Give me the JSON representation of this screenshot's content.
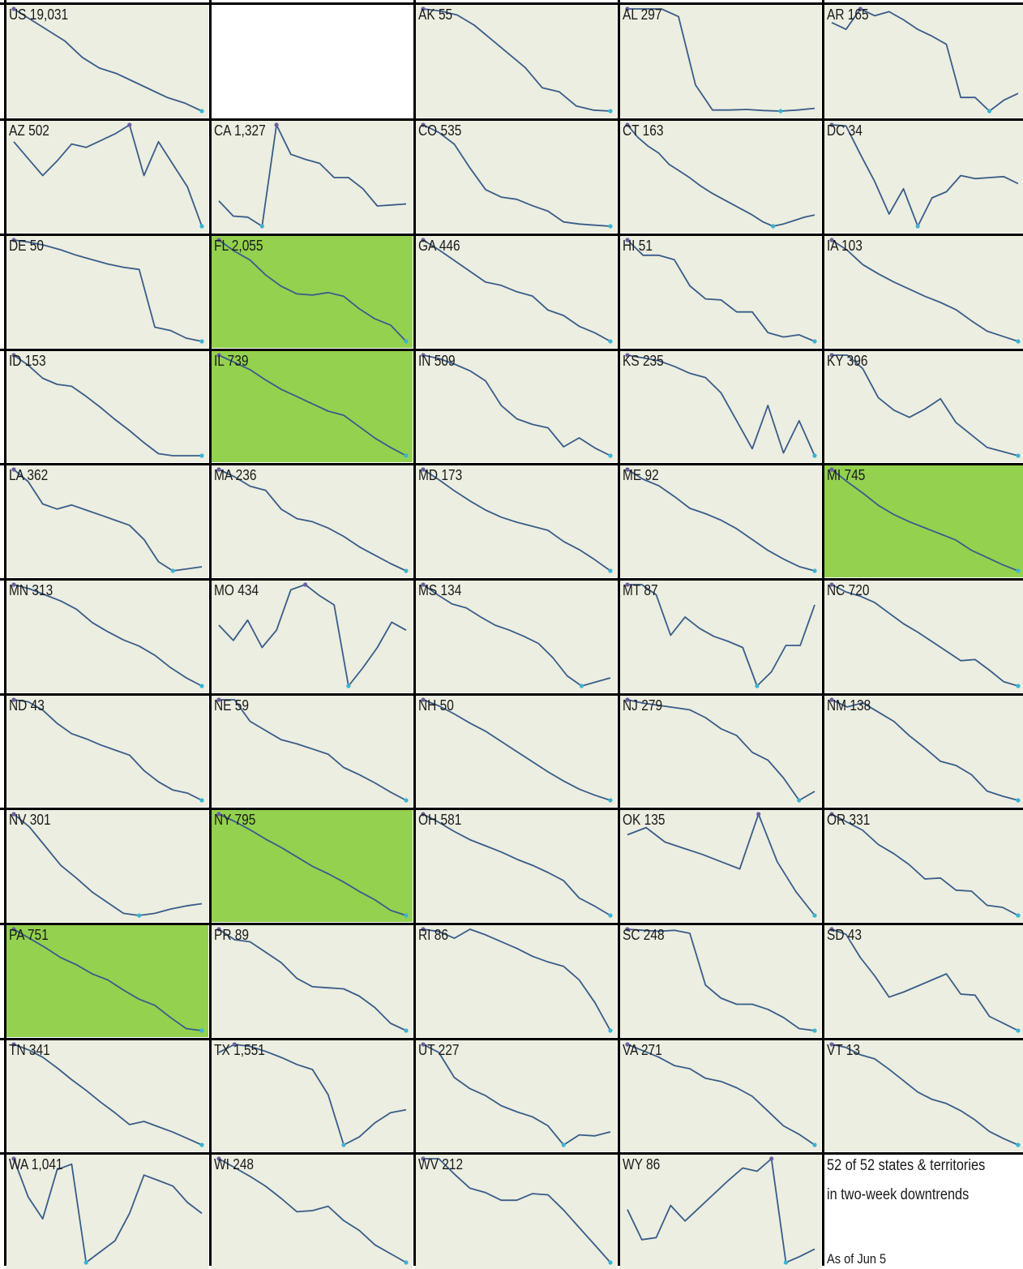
{
  "colors": {
    "panel_bg": "#ebeee0",
    "highlight_bg": "#93d14f",
    "line": "#3a5c8a",
    "peak_marker": "#6b5fa0",
    "trough_marker": "#39b4d4",
    "grid_line": "#000000"
  },
  "note": {
    "line1": "52 of 52 states & territories",
    "line2": "in two-week downtrends",
    "as_of": "As of Jun 5"
  },
  "chart_data": {
    "type": "line",
    "layout": "small-multiples",
    "panels": [
      {
        "label": "US 19,031",
        "highlight": false,
        "values": [
          100,
          96,
          92,
          88,
          82,
          78,
          76,
          73,
          70,
          67,
          65,
          62
        ]
      },
      {
        "label": "",
        "blank": true
      },
      {
        "label": "AK 55",
        "highlight": false,
        "values": [
          100,
          99,
          97,
          92,
          85,
          78,
          71,
          61,
          59,
          52,
          50,
          49.5
        ]
      },
      {
        "label": "AL 297",
        "highlight": false,
        "values": [
          100,
          100,
          100,
          93,
          30,
          7,
          7,
          7.5,
          6.5,
          6,
          7,
          8.5
        ]
      },
      {
        "label": "AR 165",
        "highlight": false,
        "values": [
          90,
          85,
          100,
          95,
          98,
          92,
          85,
          80,
          74,
          35,
          35,
          25,
          33,
          38
        ]
      },
      {
        "label": "AZ 502",
        "highlight": false,
        "values": [
          75,
          60,
          45,
          58,
          73,
          70,
          76,
          82,
          90,
          45,
          75,
          55,
          35,
          0
        ]
      },
      {
        "label": "CA 1,327",
        "highlight": false,
        "values": [
          25,
          10,
          9,
          0,
          100,
          71,
          66,
          62,
          48,
          48,
          37,
          20,
          21,
          22
        ]
      },
      {
        "label": "CO 535",
        "highlight": false,
        "values": [
          100,
          93,
          82,
          60,
          40,
          33,
          31,
          25,
          20,
          10,
          8,
          7,
          6
        ]
      },
      {
        "label": "CT 163",
        "highlight": false,
        "values": [
          100,
          89,
          81,
          75,
          65,
          59,
          53,
          46,
          40,
          35,
          30,
          25,
          20,
          14,
          10,
          12,
          15,
          18,
          20
        ]
      },
      {
        "label": "DC 34",
        "highlight": false,
        "values": [
          100,
          99,
          71,
          44,
          12,
          37,
          0,
          28,
          34,
          50,
          47,
          48,
          49,
          42
        ]
      },
      {
        "label": "DE 50",
        "highlight": false,
        "values": [
          100,
          98,
          95,
          91,
          86,
          82,
          78,
          75,
          73,
          20,
          17,
          10,
          7
        ]
      },
      {
        "label": "FL 2,055",
        "highlight": true,
        "values": [
          100,
          91,
          84,
          72,
          63,
          57,
          56,
          58,
          55,
          45,
          37,
          32,
          19
        ]
      },
      {
        "label": "GA 446",
        "highlight": false,
        "values": [
          100,
          91,
          81,
          71,
          61,
          58,
          52,
          48,
          35,
          30,
          20,
          14,
          6
        ]
      },
      {
        "label": "HI 51",
        "highlight": false,
        "values": [
          100,
          86,
          86,
          82,
          58,
          46,
          45,
          34,
          34,
          15,
          11,
          13,
          7
        ]
      },
      {
        "label": "IA 103",
        "highlight": false,
        "values": [
          100,
          90,
          76,
          67,
          59,
          52,
          45,
          39,
          32,
          21,
          11,
          6,
          1
        ]
      },
      {
        "label": "ID 153",
        "highlight": false,
        "values": [
          100,
          90,
          77,
          71,
          69,
          59,
          48,
          36,
          25,
          13,
          2,
          0,
          0,
          0
        ]
      },
      {
        "label": "IL 739",
        "highlight": true,
        "values": [
          100,
          93,
          86,
          76,
          67,
          60,
          53,
          46,
          42,
          31,
          20,
          11,
          3
        ]
      },
      {
        "label": "IN 509",
        "highlight": false,
        "values": [
          100,
          97,
          92,
          86,
          77,
          55,
          43,
          38,
          35,
          18,
          26,
          17,
          10
        ]
      },
      {
        "label": "KS 235",
        "highlight": false,
        "values": [
          100,
          98,
          96,
          92,
          87,
          84,
          73,
          53,
          33,
          64,
          30,
          53,
          28
        ]
      },
      {
        "label": "KY 396",
        "highlight": false,
        "values": [
          100,
          100,
          87,
          59,
          47,
          40,
          48,
          58,
          35,
          23,
          11,
          7,
          3
        ]
      },
      {
        "label": "LA 362",
        "highlight": false,
        "values": [
          100,
          88,
          66,
          61,
          65,
          60,
          55,
          50,
          45,
          31,
          9,
          0,
          2,
          4
        ]
      },
      {
        "label": "MA 236",
        "highlight": false,
        "values": [
          100,
          93,
          84,
          80,
          62,
          53,
          50,
          44,
          36,
          26,
          18,
          10,
          3
        ]
      },
      {
        "label": "MD 173",
        "highlight": false,
        "values": [
          100,
          90,
          79,
          69,
          60,
          53,
          48,
          44,
          40,
          29,
          21,
          11,
          0
        ]
      },
      {
        "label": "ME 92",
        "highlight": false,
        "values": [
          100,
          91,
          85,
          75,
          64,
          59,
          53,
          45,
          35,
          25,
          17,
          10,
          6
        ]
      },
      {
        "label": "MI 745",
        "highlight": true,
        "values": [
          100,
          88,
          77,
          65,
          56,
          49,
          43,
          37,
          31,
          21,
          14,
          7,
          1
        ]
      },
      {
        "label": "MN 313",
        "highlight": false,
        "values": [
          100,
          96,
          90,
          84,
          76,
          63,
          54,
          46,
          40,
          31,
          19,
          9,
          1
        ]
      },
      {
        "label": "MO 434",
        "highlight": false,
        "values": [
          60,
          45,
          65,
          38,
          55,
          95,
          100,
          89,
          80,
          0,
          18,
          38,
          63,
          55
        ]
      },
      {
        "label": "MS 134",
        "highlight": false,
        "values": [
          100,
          90,
          81,
          77,
          68,
          60,
          55,
          49,
          42,
          28,
          10,
          0,
          4,
          8
        ]
      },
      {
        "label": "MT 87",
        "highlight": false,
        "values": [
          100,
          100,
          90,
          50,
          68,
          57,
          49,
          44,
          38,
          0,
          14,
          40,
          40,
          80
        ]
      },
      {
        "label": "NC 720",
        "highlight": false,
        "values": [
          100,
          93,
          89,
          83,
          73,
          63,
          55,
          46,
          37,
          28,
          29,
          19,
          8,
          4
        ]
      },
      {
        "label": "ND 43",
        "highlight": false,
        "values": [
          100,
          98,
          90,
          77,
          67,
          62,
          56,
          51,
          46,
          31,
          20,
          12,
          9,
          2
        ]
      },
      {
        "label": "NE 59",
        "highlight": false,
        "values": [
          100,
          100,
          79,
          70,
          61,
          57,
          52,
          47,
          34,
          27,
          19,
          10,
          2
        ]
      },
      {
        "label": "NH 50",
        "highlight": false,
        "values": [
          100,
          94,
          86,
          77,
          69,
          59,
          49,
          39,
          29,
          20,
          12,
          6,
          1
        ]
      },
      {
        "label": "NJ 279",
        "highlight": false,
        "values": [
          100,
          97,
          95,
          93,
          91,
          84,
          74,
          68,
          53,
          46,
          30,
          10,
          18
        ]
      },
      {
        "label": "NM 138",
        "highlight": false,
        "values": [
          100,
          93,
          97,
          88,
          79,
          65,
          53,
          40,
          36,
          27,
          11,
          6,
          2
        ]
      },
      {
        "label": "NV 301",
        "highlight": false,
        "values": [
          100,
          88,
          70,
          52,
          40,
          27,
          17,
          7,
          5,
          7,
          11,
          14,
          16
        ]
      },
      {
        "label": "NY 795",
        "highlight": true,
        "values": [
          100,
          93,
          85,
          76,
          68,
          59,
          50,
          43,
          35,
          26,
          18,
          8,
          3
        ]
      },
      {
        "label": "OH 581",
        "highlight": false,
        "values": [
          100,
          92,
          83,
          75,
          69,
          63,
          56,
          50,
          43,
          35,
          18,
          10,
          1
        ]
      },
      {
        "label": "OK 135",
        "highlight": false,
        "values": [
          80,
          87,
          73,
          67,
          61,
          54,
          47,
          100,
          54,
          25,
          2
        ]
      },
      {
        "label": "OR 331",
        "highlight": false,
        "values": [
          100,
          92,
          84,
          70,
          61,
          50,
          36,
          37,
          25,
          24,
          10,
          8,
          0
        ]
      },
      {
        "label": "PA 751",
        "highlight": true,
        "values": [
          100,
          91,
          82,
          72,
          65,
          56,
          50,
          40,
          31,
          25,
          13,
          2,
          0
        ]
      },
      {
        "label": "PR 89",
        "highlight": false,
        "values": [
          100,
          90,
          88,
          78,
          68,
          53,
          45,
          44,
          43,
          36,
          25,
          10,
          3
        ]
      },
      {
        "label": "RI 86",
        "highlight": false,
        "values": [
          90,
          88,
          82,
          90,
          85,
          79,
          73,
          66,
          61,
          57,
          45,
          25,
          0
        ]
      },
      {
        "label": "SC 248",
        "highlight": false,
        "values": [
          100,
          99,
          98,
          99,
          96,
          45,
          32,
          26,
          26,
          21,
          13,
          2,
          0
        ]
      },
      {
        "label": "SD 43",
        "highlight": false,
        "values": [
          100,
          95,
          72,
          54,
          33,
          38,
          44,
          50,
          56,
          36,
          35,
          14,
          7,
          0
        ]
      },
      {
        "label": "TN 341",
        "highlight": false,
        "values": [
          100,
          95,
          88,
          78,
          67,
          57,
          46,
          36,
          25,
          28,
          23,
          18,
          12,
          6
        ]
      },
      {
        "label": "TX 1,551",
        "highlight": false,
        "values": [
          92,
          100,
          98,
          93,
          87,
          80,
          75,
          50,
          0,
          8,
          22,
          32,
          35
        ]
      },
      {
        "label": "UT 227",
        "highlight": false,
        "values": [
          100,
          92,
          67,
          56,
          49,
          39,
          33,
          28,
          19,
          0,
          10,
          9,
          13
        ]
      },
      {
        "label": "VA 271",
        "highlight": false,
        "values": [
          100,
          94,
          88,
          80,
          77,
          68,
          65,
          59,
          51,
          37,
          23,
          15,
          5
        ]
      },
      {
        "label": "VT 13",
        "highlight": false,
        "values": [
          100,
          97,
          90,
          86,
          76,
          65,
          54,
          47,
          43,
          36,
          27,
          16,
          9,
          3
        ]
      },
      {
        "label": "WA 1,041",
        "highlight": false,
        "values": [
          95,
          60,
          40,
          85,
          90,
          0,
          10,
          20,
          45,
          80,
          75,
          70,
          55,
          45
        ]
      },
      {
        "label": "WI 248",
        "highlight": false,
        "values": [
          100,
          92,
          84,
          75,
          64,
          52,
          53,
          57,
          44,
          35,
          22,
          14,
          6
        ]
      },
      {
        "label": "WV 212",
        "highlight": false,
        "values": [
          100,
          100,
          86,
          73,
          69,
          62,
          62,
          68,
          67,
          53,
          37,
          21,
          5
        ]
      },
      {
        "label": "WY 86",
        "highlight": false,
        "values": [
          51,
          22,
          24,
          55,
          40,
          53,
          66,
          79,
          91,
          88,
          100,
          0,
          6,
          13
        ]
      },
      {
        "label": "",
        "note": true
      }
    ]
  }
}
